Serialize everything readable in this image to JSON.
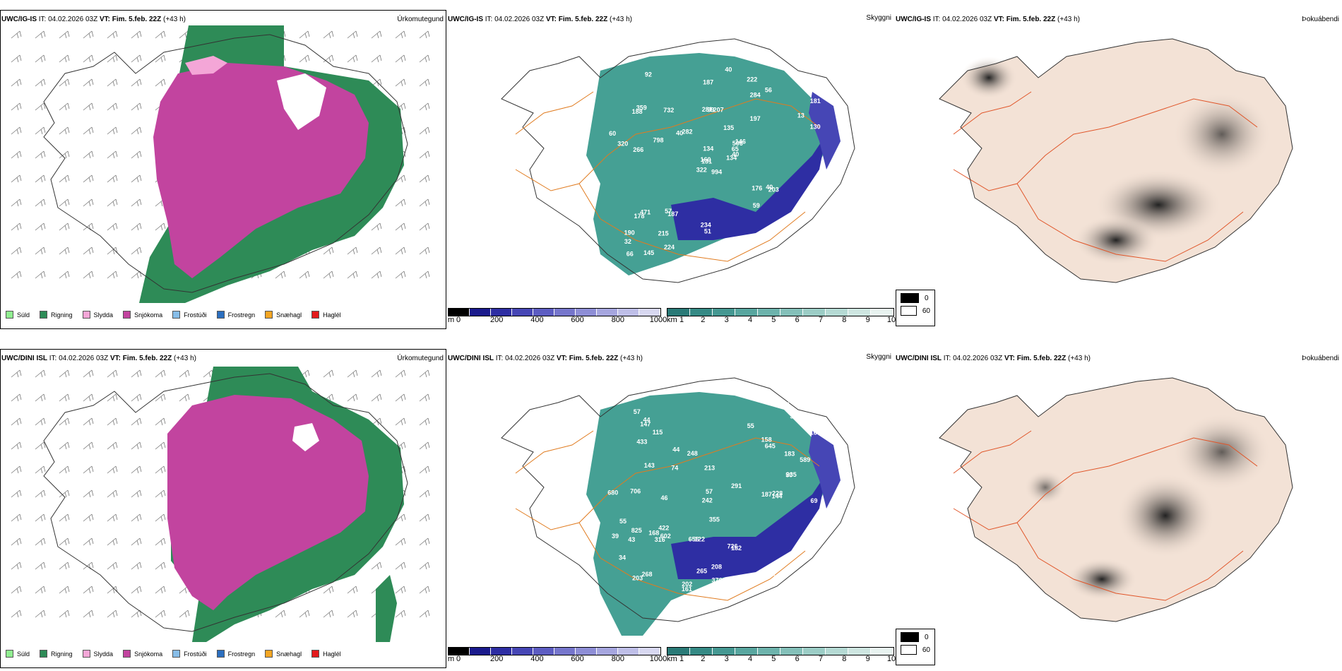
{
  "rows": [
    {
      "model": "UWC/IG-IS",
      "it_label": "IT:",
      "it_value": "04.02.2026 03Z",
      "vt_label": "VT:",
      "vt_value": "Fim. 5.feb. 22Z",
      "lead": "(+43 h)",
      "precip_title": "Úrkomutegund",
      "cloud_title": "Skyggni",
      "fog_title": "Þokuábendi",
      "cloud_labels": [
        "994",
        "188",
        "131",
        "190",
        "506",
        "187",
        "222",
        "207",
        "284",
        "134",
        "92",
        "156",
        "266",
        "181",
        "322",
        "197",
        "145",
        "281",
        "135",
        "471",
        "282",
        "32",
        "215",
        "99",
        "146",
        "203",
        "359",
        "187",
        "320",
        "176",
        "130",
        "160",
        "234",
        "134",
        "732",
        "56",
        "57",
        "41",
        "51",
        "40",
        "40",
        "40",
        "798",
        "59",
        "224",
        "60",
        "65",
        "66",
        "51",
        "40",
        "178",
        "13"
      ]
    },
    {
      "model": "UWC/DINI ISL",
      "it_label": "IT:",
      "it_value": "04.02.2026 03Z",
      "vt_label": "VT:",
      "vt_value": "Fim. 5.feb. 22Z",
      "lead": "(+43 h)",
      "precip_title": "Úrkomutegund",
      "cloud_title": "Skyggni",
      "fog_title": "Þokuábendi",
      "cloud_labels": [
        "187",
        "318",
        "228",
        "355",
        "208",
        "248",
        "242",
        "168",
        "122",
        "69",
        "316",
        "115",
        "202",
        "589",
        "203",
        "167",
        "182",
        "213",
        "706",
        "291",
        "726",
        "433",
        "422",
        "144",
        "656",
        "147",
        "265",
        "143",
        "368",
        "183",
        "235",
        "376",
        "161",
        "158",
        "825",
        "74",
        "147",
        "55",
        "39",
        "57",
        "55",
        "50",
        "36",
        "46",
        "43",
        "34",
        "44",
        "57",
        "680",
        "645",
        "602",
        "268",
        "44",
        "114"
      ]
    }
  ],
  "precip_legend": [
    {
      "label": "Súld",
      "color": "#90ee90"
    },
    {
      "label": "Rigning",
      "color": "#2e8b57"
    },
    {
      "label": "Slydda",
      "color": "#f4a6d7"
    },
    {
      "label": "Snjókoma",
      "color": "#c2449f"
    },
    {
      "label": "Frostúði",
      "color": "#87bde8"
    },
    {
      "label": "Frostregn",
      "color": "#2c6fbf"
    },
    {
      "label": "Snæhagl",
      "color": "#f5a623"
    },
    {
      "label": "Haglél",
      "color": "#e31a1c"
    }
  ],
  "cloudbase_scale": {
    "unit": "m",
    "ticks": [
      "0",
      "200",
      "400",
      "600",
      "800",
      "1000"
    ],
    "colors": [
      "#000000",
      "#1a1a8c",
      "#2e2ea3",
      "#4646b5",
      "#5d5dc2",
      "#7676cc",
      "#8e8ed6",
      "#a6a6df",
      "#bfbfe8",
      "#d8d8f1"
    ]
  },
  "visibility_scale": {
    "unit": "km",
    "ticks": [
      "1",
      "2",
      "3",
      "4",
      "5",
      "6",
      "7",
      "8",
      "9",
      "10"
    ],
    "colors": [
      "#2a7a77",
      "#358a85",
      "#459892",
      "#58a69f",
      "#6db3ac",
      "#84c0b9",
      "#9ccdc6",
      "#b5dad4",
      "#cee6e1",
      "#e8f3f0"
    ]
  },
  "fog_legend": [
    {
      "label": "0",
      "color": "#000000"
    },
    {
      "label": "60",
      "color": "#ffffff"
    }
  ]
}
